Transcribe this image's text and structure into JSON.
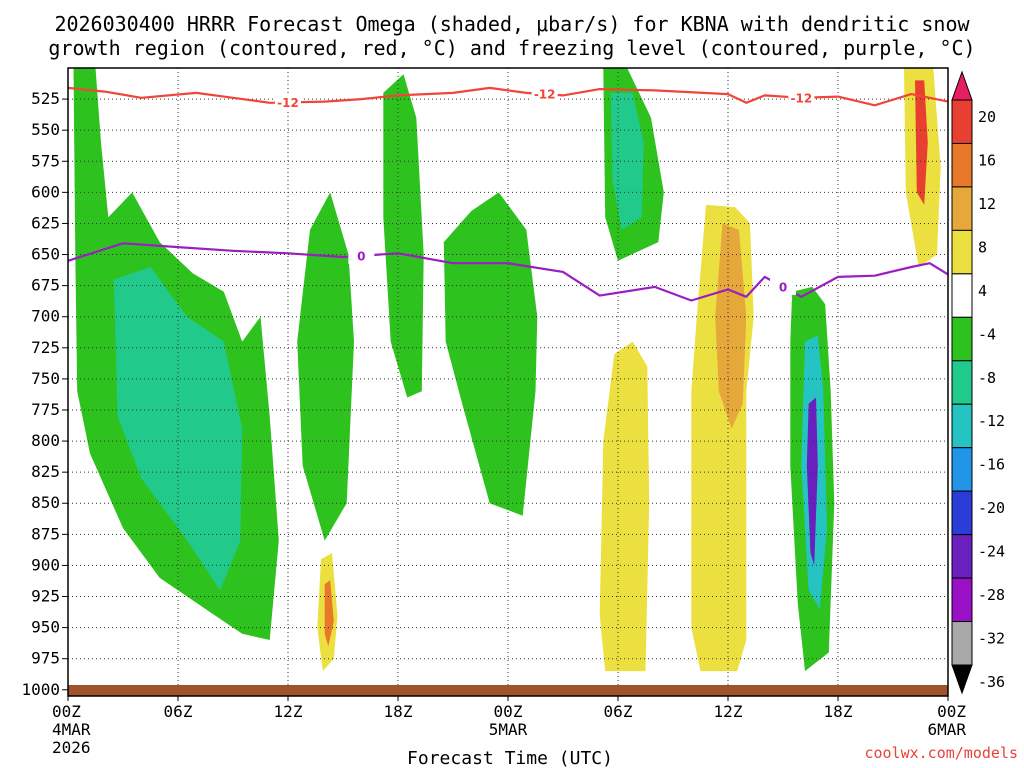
{
  "chart_data": {
    "type": "heatmap",
    "title_line1": "2026030400 HRRR Forecast Omega (shaded, μbar/s) for KBNA with dendritic snow",
    "title_line2": "growth region (contoured, red, °C) and freezing level (contoured, purple, °C)",
    "xlabel": "Forecast Time (UTC)",
    "credit": "coolwx.com/models",
    "x_hours": [
      0,
      6,
      12,
      18,
      24,
      30,
      36,
      42,
      48
    ],
    "x_tick_labels": [
      "00Z",
      "06Z",
      "12Z",
      "18Z",
      "00Z",
      "06Z",
      "12Z",
      "18Z",
      "00Z"
    ],
    "x_date_labels": [
      {
        "hour": 0,
        "line1": "4MAR",
        "line2": "2026"
      },
      {
        "hour": 24,
        "line1": "5MAR",
        "line2": ""
      },
      {
        "hour": 48,
        "line1": "6MAR",
        "line2": ""
      }
    ],
    "y_levels": [
      525,
      550,
      575,
      600,
      625,
      650,
      675,
      700,
      725,
      750,
      775,
      800,
      825,
      850,
      875,
      900,
      925,
      950,
      975,
      1000
    ],
    "y_range_mb": [
      500,
      1005
    ],
    "colorbar_labels": [
      "20",
      "16",
      "12",
      "8",
      "4",
      "-4",
      "-8",
      "-12",
      "-16",
      "-20",
      "-24",
      "-28",
      "-32",
      "-36"
    ],
    "colorbar_colors": [
      "#e81e63",
      "#e84030",
      "#e8782a",
      "#e6a83a",
      "#ece040",
      "#ffffff",
      "#2ec21f",
      "#21c98a",
      "#25c4c2",
      "#2196e8",
      "#2c3cd8",
      "#6a1fbf",
      "#9a10c6",
      "#a9a9a9",
      "#000000"
    ],
    "colors": {
      "dgz_contour": "#f0453a",
      "freezing_contour": "#9a1ec0",
      "ground": "#a0522d",
      "title": "#000000",
      "credit": "#e8423c"
    },
    "dgz_contour_label": "-12",
    "dgz_contour": [
      {
        "hour": 0,
        "mb": 516
      },
      {
        "hour": 2,
        "mb": 519
      },
      {
        "hour": 4,
        "mb": 524
      },
      {
        "hour": 7,
        "mb": 520
      },
      {
        "hour": 9,
        "mb": 524
      },
      {
        "hour": 11,
        "mb": 528
      },
      {
        "hour": 14,
        "mb": 527
      },
      {
        "hour": 16,
        "mb": 525
      },
      {
        "hour": 18,
        "mb": 522
      },
      {
        "hour": 21,
        "mb": 520
      },
      {
        "hour": 23,
        "mb": 516
      },
      {
        "hour": 25,
        "mb": 520
      },
      {
        "hour": 27,
        "mb": 522
      },
      {
        "hour": 29,
        "mb": 517
      },
      {
        "hour": 32,
        "mb": 518
      },
      {
        "hour": 36,
        "mb": 521
      },
      {
        "hour": 37,
        "mb": 528
      },
      {
        "hour": 38,
        "mb": 522
      },
      {
        "hour": 40,
        "mb": 524
      },
      {
        "hour": 42,
        "mb": 523
      },
      {
        "hour": 44,
        "mb": 530
      },
      {
        "hour": 46,
        "mb": 521
      },
      {
        "hour": 48,
        "mb": 527
      }
    ],
    "dgz_label_hours": [
      12,
      26,
      40
    ],
    "freezing_contour_label": "0",
    "freezing_contour": [
      {
        "hour": 0,
        "mb": 655
      },
      {
        "hour": 3,
        "mb": 641
      },
      {
        "hour": 6,
        "mb": 644
      },
      {
        "hour": 9,
        "mb": 647
      },
      {
        "hour": 12,
        "mb": 649
      },
      {
        "hour": 15,
        "mb": 652
      },
      {
        "hour": 18,
        "mb": 649
      },
      {
        "hour": 21,
        "mb": 657
      },
      {
        "hour": 24,
        "mb": 657
      },
      {
        "hour": 27,
        "mb": 664
      },
      {
        "hour": 29,
        "mb": 683
      },
      {
        "hour": 32,
        "mb": 676
      },
      {
        "hour": 34,
        "mb": 687
      },
      {
        "hour": 36,
        "mb": 678
      },
      {
        "hour": 37,
        "mb": 684
      },
      {
        "hour": 38,
        "mb": 668
      },
      {
        "hour": 40,
        "mb": 684
      },
      {
        "hour": 42,
        "mb": 668
      },
      {
        "hour": 44,
        "mb": 667
      },
      {
        "hour": 46,
        "mb": 660
      },
      {
        "hour": 47,
        "mb": 657
      },
      {
        "hour": 48,
        "mb": 666
      }
    ],
    "freezing_label_hours": [
      16,
      39
    ],
    "omega_regions": [
      {
        "name": "omega-sinking-12z-5mar",
        "color": "#ece040",
        "points": [
          [
            34.8,
            610
          ],
          [
            36.4,
            612
          ],
          [
            37.2,
            625
          ],
          [
            37.4,
            700
          ],
          [
            37,
            760
          ],
          [
            37,
            960
          ],
          [
            36.5,
            985
          ],
          [
            34.5,
            985
          ],
          [
            34,
            950
          ],
          [
            34,
            760
          ],
          [
            34.3,
            700
          ]
        ]
      },
      {
        "name": "omega-sinking-06z-5mar",
        "color": "#ece040",
        "points": [
          [
            29.8,
            730
          ],
          [
            30.8,
            720
          ],
          [
            31.6,
            740
          ],
          [
            31.7,
            850
          ],
          [
            31.5,
            985
          ],
          [
            29.3,
            985
          ],
          [
            29,
            940
          ],
          [
            29.2,
            800
          ]
        ]
      },
      {
        "name": "omega-sinking-strong-12z",
        "color": "#e6a83a",
        "points": [
          [
            35.7,
            625
          ],
          [
            36.6,
            630
          ],
          [
            37,
            700
          ],
          [
            36.8,
            770
          ],
          [
            36.2,
            790
          ],
          [
            35.5,
            760
          ],
          [
            35.3,
            700
          ]
        ]
      },
      {
        "name": "omega-rising-17z-6mar",
        "color": "#2ec21f",
        "points": [
          [
            39.5,
            680
          ],
          [
            40.6,
            676
          ],
          [
            41.3,
            690
          ],
          [
            41.6,
            760
          ],
          [
            41.8,
            850
          ],
          [
            41.5,
            970
          ],
          [
            40.2,
            985
          ],
          [
            39.8,
            930
          ],
          [
            39.4,
            820
          ],
          [
            39.4,
            720
          ]
        ]
      },
      {
        "name": "omega-rising-core-17z",
        "color": "#25c4c2",
        "points": [
          [
            40.2,
            720
          ],
          [
            40.9,
            715
          ],
          [
            41.2,
            760
          ],
          [
            41.4,
            870
          ],
          [
            41,
            935
          ],
          [
            40.4,
            920
          ],
          [
            40,
            820
          ]
        ]
      },
      {
        "name": "omega-rising-peak-17z",
        "color": "#6a1fbf",
        "points": [
          [
            40.4,
            770
          ],
          [
            40.8,
            765
          ],
          [
            40.9,
            820
          ],
          [
            40.7,
            900
          ],
          [
            40.5,
            890
          ],
          [
            40.3,
            820
          ]
        ]
      },
      {
        "name": "omega-rising-00z-4mar",
        "color": "#2ec21f",
        "points": [
          [
            0.3,
            500
          ],
          [
            1.5,
            500
          ],
          [
            1.8,
            560
          ],
          [
            2.2,
            620
          ],
          [
            3.5,
            600
          ],
          [
            5,
            640
          ],
          [
            6.8,
            665
          ],
          [
            8.5,
            680
          ],
          [
            9.5,
            720
          ],
          [
            10.5,
            700
          ],
          [
            11,
            780
          ],
          [
            11.5,
            880
          ],
          [
            11,
            960
          ],
          [
            9.5,
            955
          ],
          [
            8,
            940
          ],
          [
            5,
            910
          ],
          [
            3,
            870
          ],
          [
            1.2,
            810
          ],
          [
            0.5,
            760
          ],
          [
            0.4,
            650
          ]
        ]
      },
      {
        "name": "omega-rising-core-4mar",
        "color": "#21c98a",
        "points": [
          [
            2.5,
            670
          ],
          [
            4.5,
            660
          ],
          [
            6.5,
            700
          ],
          [
            8.5,
            720
          ],
          [
            9.5,
            790
          ],
          [
            9.4,
            880
          ],
          [
            8.3,
            920
          ],
          [
            6.5,
            880
          ],
          [
            4,
            830
          ],
          [
            2.7,
            780
          ]
        ]
      },
      {
        "name": "omega-rising-14z-4mar",
        "color": "#2ec21f",
        "points": [
          [
            12.5,
            720
          ],
          [
            13.2,
            630
          ],
          [
            14.3,
            600
          ],
          [
            15.3,
            650
          ],
          [
            15.6,
            720
          ],
          [
            15.2,
            850
          ],
          [
            14,
            880
          ],
          [
            12.8,
            820
          ]
        ]
      },
      {
        "name": "omega-rising-18z-4mar",
        "color": "#2ec21f",
        "points": [
          [
            17.2,
            520
          ],
          [
            18.3,
            505
          ],
          [
            19,
            540
          ],
          [
            19.4,
            650
          ],
          [
            19.3,
            760
          ],
          [
            18.5,
            765
          ],
          [
            17.6,
            720
          ],
          [
            17.2,
            620
          ]
        ]
      },
      {
        "name": "omega-rising-22z-4mar",
        "color": "#2ec21f",
        "points": [
          [
            20.5,
            640
          ],
          [
            22,
            615
          ],
          [
            23.5,
            600
          ],
          [
            25,
            630
          ],
          [
            25.6,
            700
          ],
          [
            25.5,
            760
          ],
          [
            24.8,
            860
          ],
          [
            23,
            850
          ],
          [
            21.5,
            770
          ],
          [
            20.6,
            720
          ]
        ]
      },
      {
        "name": "omega-rising-02z-5mar",
        "color": "#2ec21f",
        "points": [
          [
            29.2,
            500
          ],
          [
            30.5,
            500
          ],
          [
            31.8,
            540
          ],
          [
            32.5,
            600
          ],
          [
            32.2,
            640
          ],
          [
            30,
            655
          ],
          [
            29.3,
            620
          ]
        ]
      },
      {
        "name": "omega-rising-core-02z",
        "color": "#21c98a",
        "points": [
          [
            29.6,
            520
          ],
          [
            30.8,
            520
          ],
          [
            31.4,
            560
          ],
          [
            31.3,
            620
          ],
          [
            30.2,
            630
          ],
          [
            29.7,
            590
          ]
        ]
      },
      {
        "name": "omega-sinking-23z-5mar",
        "color": "#ece040",
        "points": [
          [
            45.6,
            500
          ],
          [
            47.2,
            500
          ],
          [
            47.6,
            580
          ],
          [
            47.4,
            650
          ],
          [
            46.4,
            660
          ],
          [
            45.7,
            600
          ]
        ]
      },
      {
        "name": "omega-sinking-core-23z",
        "color": "#e84030",
        "points": [
          [
            46.2,
            510
          ],
          [
            46.7,
            510
          ],
          [
            46.9,
            560
          ],
          [
            46.7,
            610
          ],
          [
            46.3,
            600
          ]
        ]
      },
      {
        "name": "omega-sinking-14z-4mar",
        "color": "#ece040",
        "points": [
          [
            13.8,
            895
          ],
          [
            14.4,
            890
          ],
          [
            14.7,
            940
          ],
          [
            14.5,
            975
          ],
          [
            13.9,
            985
          ],
          [
            13.6,
            950
          ]
        ]
      },
      {
        "name": "omega-sinking-core-14z",
        "color": "#e8782a",
        "points": [
          [
            14,
            915
          ],
          [
            14.3,
            912
          ],
          [
            14.5,
            945
          ],
          [
            14.2,
            965
          ],
          [
            14,
            955
          ]
        ]
      }
    ]
  }
}
